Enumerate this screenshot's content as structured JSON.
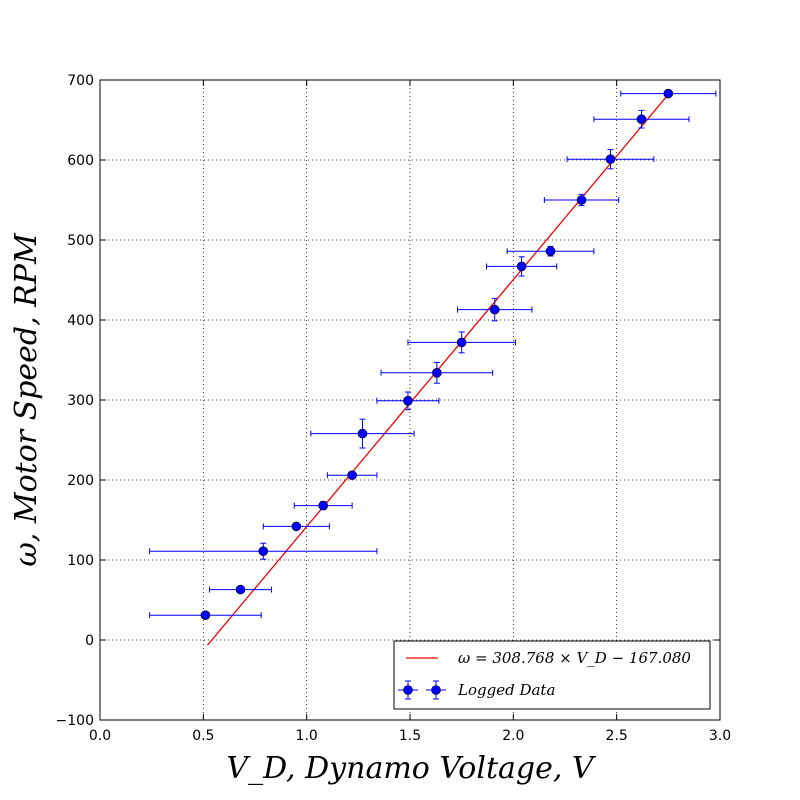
{
  "chart_data": {
    "type": "scatter",
    "xlabel": "V_D,  Dynamo Voltage,  V",
    "ylabel": "ω,  Motor Speed,  RPM",
    "xlim": [
      0.0,
      3.0
    ],
    "ylim": [
      -100,
      700
    ],
    "xticks": [
      0.0,
      0.5,
      1.0,
      1.5,
      2.0,
      2.5,
      3.0
    ],
    "xtick_labels": [
      "0.0",
      "0.5",
      "1.0",
      "1.5",
      "2.0",
      "2.5",
      "3.0"
    ],
    "yticks": [
      -100,
      0,
      100,
      200,
      300,
      400,
      500,
      600,
      700
    ],
    "ytick_labels": [
      "−100",
      "0",
      "100",
      "200",
      "300",
      "400",
      "500",
      "600",
      "700"
    ],
    "grid": true,
    "legend_position": "lower-right",
    "series": [
      {
        "name": "Logged Data",
        "kind": "errorbar",
        "color": "#0000ff",
        "points": [
          {
            "x": 0.51,
            "y": 31,
            "xerr": 0.27,
            "yerr": 3
          },
          {
            "x": 0.68,
            "y": 63,
            "xerr": 0.15,
            "yerr": 3
          },
          {
            "x": 0.79,
            "y": 111,
            "xerr": 0.55,
            "yerr": 10
          },
          {
            "x": 0.95,
            "y": 142,
            "xerr": 0.16,
            "yerr": 3
          },
          {
            "x": 1.08,
            "y": 168,
            "xerr": 0.14,
            "yerr": 5
          },
          {
            "x": 1.22,
            "y": 206,
            "xerr": 0.12,
            "yerr": 3
          },
          {
            "x": 1.27,
            "y": 258,
            "xerr": 0.25,
            "yerr": 18
          },
          {
            "x": 1.49,
            "y": 299,
            "xerr": 0.15,
            "yerr": 11
          },
          {
            "x": 1.63,
            "y": 334,
            "xerr": 0.27,
            "yerr": 13
          },
          {
            "x": 1.75,
            "y": 372,
            "xerr": 0.26,
            "yerr": 13
          },
          {
            "x": 1.91,
            "y": 413,
            "xerr": 0.18,
            "yerr": 14
          },
          {
            "x": 2.04,
            "y": 467,
            "xerr": 0.17,
            "yerr": 12
          },
          {
            "x": 2.18,
            "y": 486,
            "xerr": 0.21,
            "yerr": 6
          },
          {
            "x": 2.33,
            "y": 550,
            "xerr": 0.18,
            "yerr": 7
          },
          {
            "x": 2.47,
            "y": 601,
            "xerr": 0.21,
            "yerr": 12
          },
          {
            "x": 2.62,
            "y": 651,
            "xerr": 0.23,
            "yerr": 11
          },
          {
            "x": 2.75,
            "y": 683,
            "xerr": 0.23,
            "yerr": 3
          }
        ]
      },
      {
        "name": "ω = 308.768 × V_D − 167.080",
        "kind": "line",
        "color": "#ff0000",
        "slope": 308.768,
        "intercept": -167.08,
        "x_range": [
          0.52,
          2.76
        ]
      }
    ],
    "legend": [
      {
        "label": "ω = 308.768 × V_D − 167.080",
        "kind": "line",
        "color": "#ff0000"
      },
      {
        "label": "Logged Data",
        "kind": "errorbar",
        "color": "#0000ff"
      }
    ]
  }
}
